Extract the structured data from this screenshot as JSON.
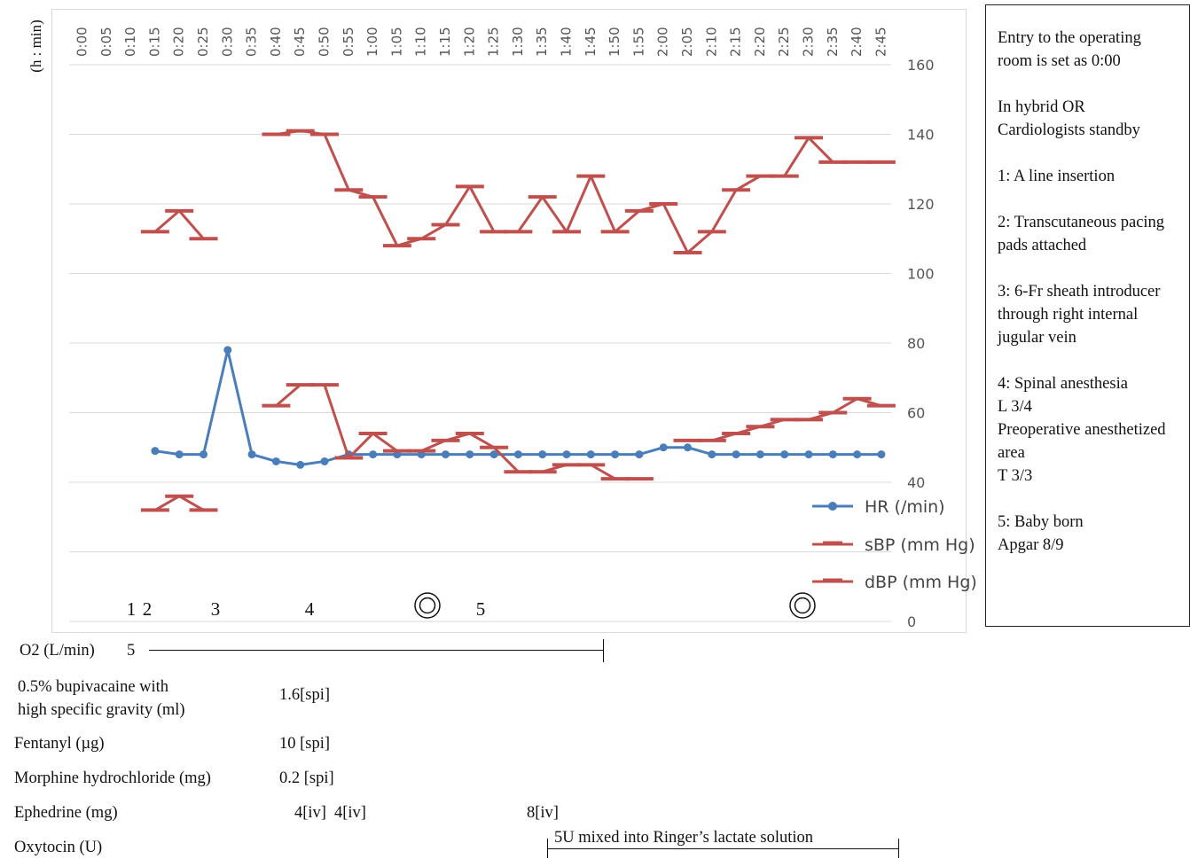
{
  "chart_data": {
    "type": "line",
    "y_axis_title": "(h : min)",
    "x": [
      "0:00",
      "0:05",
      "0:10",
      "0:15",
      "0:20",
      "0:25",
      "0:30",
      "0:35",
      "0:40",
      "0:45",
      "0:50",
      "0:55",
      "1:00",
      "1:05",
      "1:10",
      "1:15",
      "1:20",
      "1:25",
      "1:30",
      "1:35",
      "1:40",
      "1:45",
      "1:50",
      "1:55",
      "2:00",
      "2:05",
      "2:10",
      "2:15",
      "2:20",
      "2:25",
      "2:30",
      "2:35",
      "2:40",
      "2:45"
    ],
    "yticks": [
      0,
      40,
      60,
      80,
      100,
      120,
      140,
      160
    ],
    "ylim": [
      0,
      160
    ],
    "grid": true,
    "legend_position": "bottom-right",
    "series": [
      {
        "name": "HR (/min)",
        "color": "#4a7ebb",
        "marker": "circle",
        "values": [
          null,
          null,
          null,
          49,
          48,
          48,
          78,
          48,
          46,
          45,
          46,
          48,
          48,
          48,
          48,
          48,
          48,
          48,
          48,
          48,
          48,
          48,
          48,
          48,
          50,
          50,
          48,
          48,
          48,
          48,
          48,
          48,
          48,
          48
        ]
      },
      {
        "name": "sBP (mm Hg)",
        "color": "#c0504d",
        "marker": "dash",
        "values": [
          null,
          null,
          null,
          112,
          118,
          110,
          null,
          null,
          140,
          141,
          140,
          124,
          122,
          108,
          110,
          114,
          125,
          112,
          112,
          122,
          112,
          128,
          112,
          118,
          120,
          106,
          112,
          124,
          128,
          128,
          139,
          132,
          132,
          132
        ]
      },
      {
        "name": "dBP (mm Hg)",
        "color": "#c0504d",
        "marker": "dash",
        "values": [
          null,
          null,
          null,
          32,
          36,
          32,
          null,
          null,
          62,
          68,
          68,
          47,
          54,
          49,
          49,
          52,
          54,
          50,
          43,
          43,
          45,
          45,
          41,
          41,
          null,
          52,
          52,
          54,
          56,
          58,
          58,
          60,
          64,
          62
        ]
      }
    ],
    "event_markers": [
      {
        "label": "1",
        "at": "0:15"
      },
      {
        "label": "2",
        "at": "0:15"
      },
      {
        "label": "3",
        "at": "0:30"
      },
      {
        "label": "4",
        "at": "0:50"
      },
      {
        "label": "5",
        "at": "1:22"
      }
    ],
    "double_circle_markers": [
      "1:10",
      "2:30"
    ]
  },
  "legend_notes": [
    "Entry to the operating room is set as 0:00",
    "In hybrid OR\nCardiologists standby",
    "1: A line insertion",
    "2: Transcutaneous pacing pads attached",
    "3: 6-Fr sheath introducer through right internal jugular vein",
    "4: Spinal anesthesia\nL 3/4\nPreoperative anesthetized area\nT 3/3",
    "5: Baby born\nApgar 8/9"
  ],
  "medications": {
    "o2": {
      "label": "O2 (L/min)",
      "value": "5",
      "until": "1:50"
    },
    "bupivacaine": {
      "label_line1": "0.5% bupivacaine with",
      "label_line2": "high specific gravity (ml)",
      "dose": "1.6[spi]"
    },
    "fentanyl": {
      "label": "Fentanyl (µg)",
      "dose": "10 [spi]"
    },
    "morphine": {
      "label": "Morphine hydrochloride (mg)",
      "dose": "0.2 [spi]"
    },
    "ephedrine": {
      "label": "Ephedrine (mg)",
      "dose1": "4[iv]",
      "dose2": "4[iv]",
      "dose3": "8[iv]"
    },
    "oxytocin": {
      "label": "Oxytocin (U)",
      "note": "5U mixed into Ringer’s lactate solution",
      "from": "1:10",
      "to": "2:45"
    }
  }
}
